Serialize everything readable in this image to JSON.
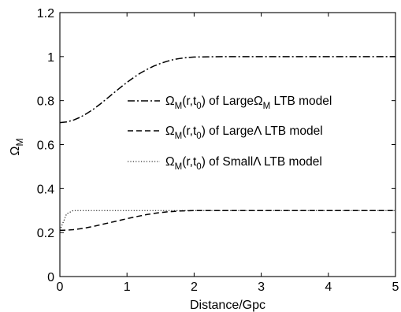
{
  "chart_data": {
    "type": "line",
    "xlabel": "Distance/Gpc",
    "ylabel_main": "Ω",
    "ylabel_sub": "M",
    "xlim": [
      0,
      5
    ],
    "ylim": [
      0,
      1.2
    ],
    "xticks": [
      0,
      1,
      2,
      3,
      4,
      5
    ],
    "xtick_labels": [
      "0",
      "1",
      "2",
      "3",
      "4",
      "5"
    ],
    "yticks": [
      0,
      0.2,
      0.4,
      0.6,
      0.8,
      1,
      1.2
    ],
    "ytick_labels": [
      "0",
      "0.2",
      "0.4",
      "0.6",
      "0.8",
      "1",
      "1.2"
    ],
    "grid": false,
    "legend_position": "center-right",
    "x": [
      0,
      0.1,
      0.2,
      0.3,
      0.4,
      0.5,
      0.6,
      0.7,
      0.8,
      0.9,
      1.0,
      1.1,
      1.2,
      1.3,
      1.4,
      1.5,
      1.6,
      1.7,
      1.8,
      1.9,
      2.0,
      2.2,
      2.5,
      3.0,
      3.5,
      4.0,
      4.5,
      5.0
    ],
    "series": [
      {
        "legend": {
          "pre": "Ω",
          "sub1": "M",
          "mid": "(r,t",
          "sub2": "0",
          "post": ") of Large",
          "sym": "Ω",
          "symsub": "M",
          "tail": " LTB model"
        },
        "style": "dashdot",
        "values": [
          0.7,
          0.703,
          0.711,
          0.724,
          0.741,
          0.761,
          0.784,
          0.809,
          0.834,
          0.859,
          0.883,
          0.905,
          0.925,
          0.942,
          0.957,
          0.969,
          0.979,
          0.987,
          0.992,
          0.996,
          0.998,
          0.999,
          1.0,
          1.0,
          1.0,
          1.0,
          1.0,
          1.0
        ]
      },
      {
        "legend": {
          "pre": "Ω",
          "sub1": "M",
          "mid": "(r,t",
          "sub2": "0",
          "post": ") of Large",
          "sym": "Λ",
          "symsub": "",
          "tail": " LTB model"
        },
        "style": "dashed",
        "values": [
          0.21,
          0.211,
          0.213,
          0.217,
          0.222,
          0.228,
          0.235,
          0.242,
          0.249,
          0.256,
          0.263,
          0.27,
          0.276,
          0.282,
          0.287,
          0.291,
          0.294,
          0.296,
          0.298,
          0.299,
          0.3,
          0.3,
          0.3,
          0.3,
          0.3,
          0.3,
          0.3,
          0.3
        ]
      },
      {
        "legend": {
          "pre": "Ω",
          "sub1": "M",
          "mid": "(r,t",
          "sub2": "0",
          "post": ") of Small",
          "sym": "Λ",
          "symsub": "",
          "tail": " LTB model"
        },
        "style": "dotted",
        "values": [
          0.21,
          0.285,
          0.3,
          0.3,
          0.3,
          0.3,
          0.3,
          0.3,
          0.3,
          0.3,
          0.3,
          0.3,
          0.3,
          0.3,
          0.3,
          0.3,
          0.3,
          0.3,
          0.3,
          0.3,
          0.3,
          0.3,
          0.3,
          0.3,
          0.3,
          0.3,
          0.3,
          0.3
        ]
      }
    ]
  }
}
